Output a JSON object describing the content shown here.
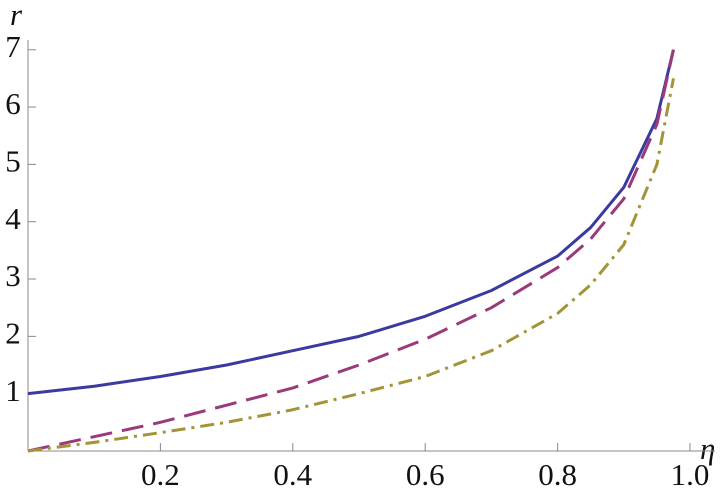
{
  "chart_data": {
    "type": "line",
    "x_label": "η",
    "y_label": "r",
    "x": [
      0,
      0.1,
      0.2,
      0.3,
      0.4,
      0.5,
      0.6,
      0.7,
      0.8,
      0.85,
      0.9,
      0.95,
      0.975
    ],
    "series": [
      {
        "color": "#3b3b9e",
        "dash": "none",
        "values": [
          1.0,
          1.13,
          1.3,
          1.5,
          1.75,
          2.0,
          2.35,
          2.8,
          3.4,
          3.9,
          4.6,
          5.8,
          7.0
        ]
      },
      {
        "color": "#9b3a7a",
        "dash": "22 10",
        "values": [
          0,
          0.25,
          0.5,
          0.8,
          1.1,
          1.5,
          1.95,
          2.5,
          3.2,
          3.7,
          4.4,
          5.7,
          7.0
        ]
      },
      {
        "color": "#a39438",
        "dash": "14 6 3 6",
        "values": [
          0,
          0.15,
          0.32,
          0.5,
          0.72,
          1.0,
          1.3,
          1.75,
          2.4,
          2.9,
          3.6,
          5.0,
          6.5
        ]
      }
    ],
    "xlim": [
      0,
      1
    ],
    "ylim": [
      0,
      7.1
    ],
    "xticks": [
      {
        "value": 0.2,
        "label": "0.2"
      },
      {
        "value": 0.4,
        "label": "0.4"
      },
      {
        "value": 0.6,
        "label": "0.6"
      },
      {
        "value": 0.8,
        "label": "0.8"
      },
      {
        "value": 1,
        "label": "1.0"
      }
    ],
    "yticks": [
      1,
      2,
      3,
      4,
      5,
      6,
      7
    ]
  }
}
